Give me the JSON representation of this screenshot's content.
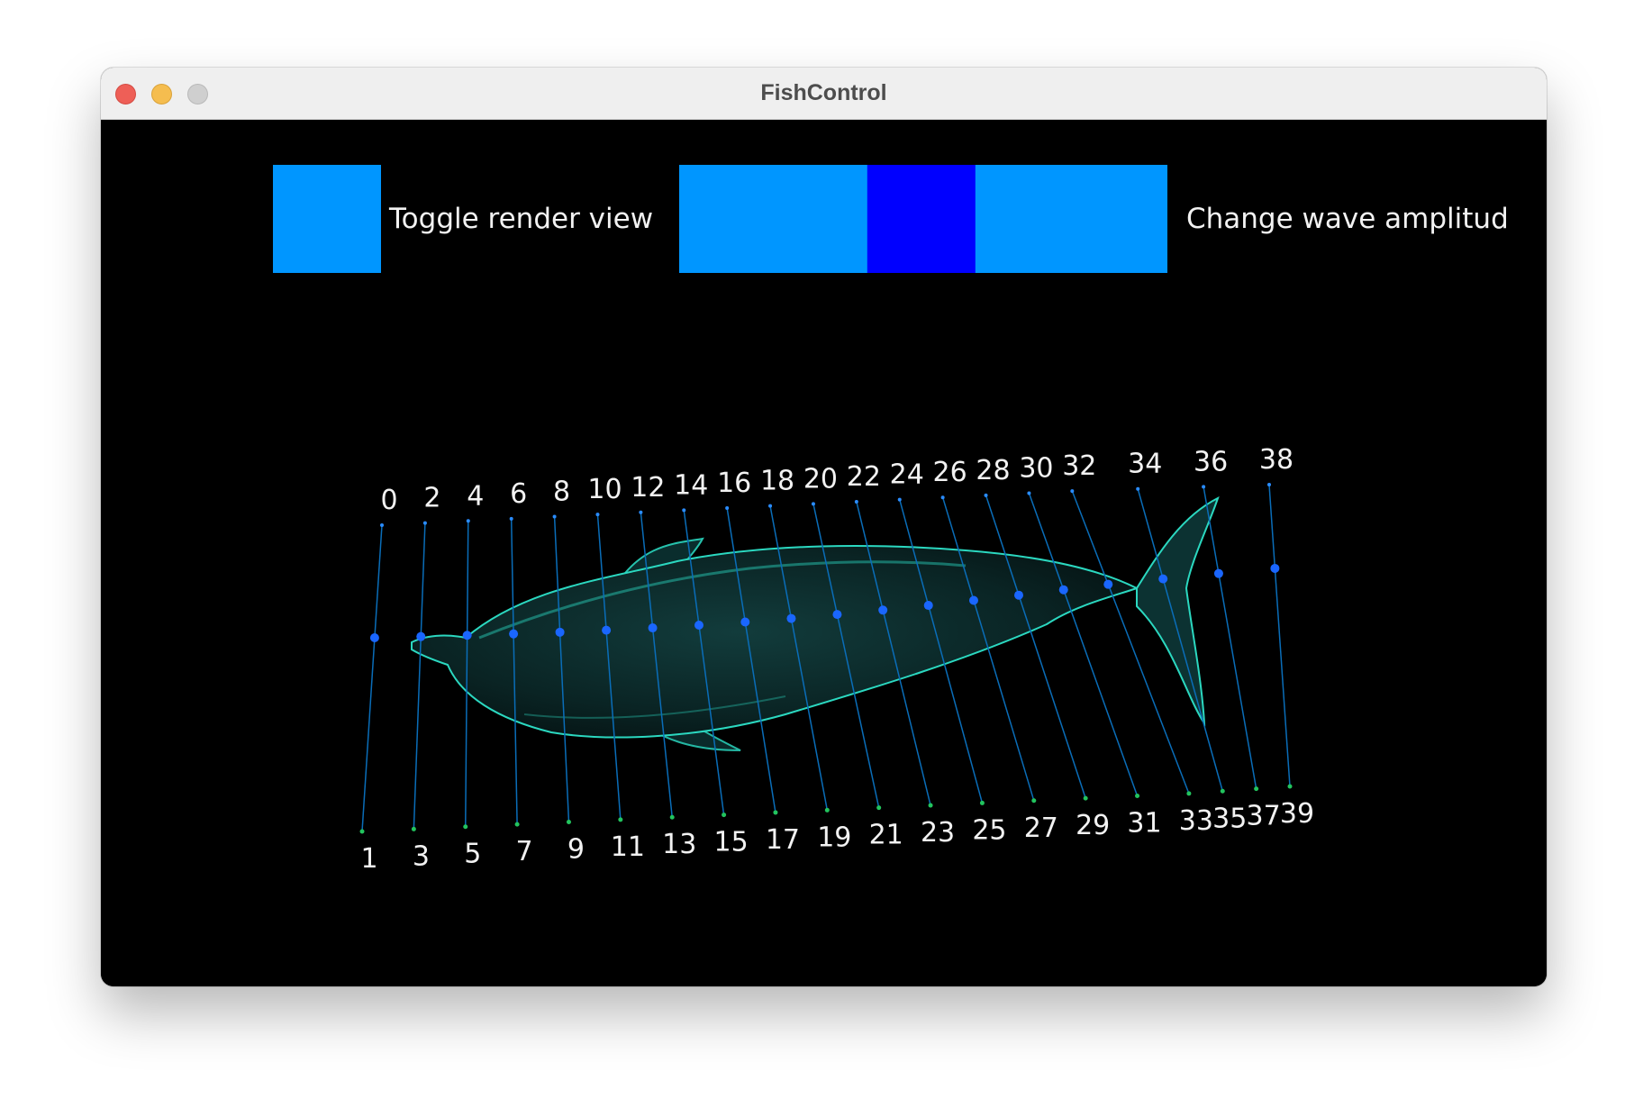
{
  "window": {
    "title": "FishControl"
  },
  "controls": {
    "toggle_label": "Toggle render view",
    "amplitude_label": "Change wave amplitud",
    "amplitude_fraction": 0.4
  },
  "colors": {
    "button_blue": "#0096ff",
    "slider_thumb": "#0000ff",
    "skeleton_line": "#0a6db8",
    "joint_dot": "#1a66ff",
    "bottom_marker": "#22c45e",
    "fish_body": "#0c2a2a",
    "fish_highlight": "#2bd8c0"
  },
  "skeleton": {
    "top_labels": [
      "0",
      "2",
      "4",
      "6",
      "8",
      "10",
      "12",
      "14",
      "16",
      "18",
      "20",
      "22",
      "24",
      "26",
      "28",
      "30",
      "32",
      "34",
      "36",
      "38"
    ],
    "bottom_labels": [
      "1",
      "3",
      "5",
      "7",
      "9",
      "11",
      "13",
      "15",
      "17",
      "19",
      "21",
      "23",
      "25",
      "27",
      "29",
      "31",
      "33",
      "35",
      "37",
      "39"
    ]
  }
}
